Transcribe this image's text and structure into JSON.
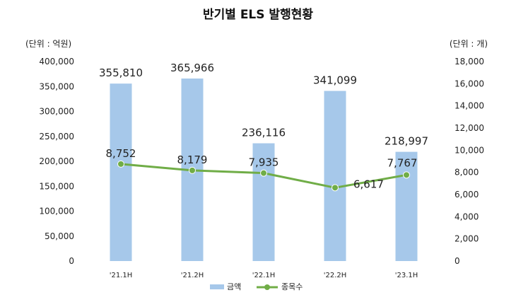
{
  "chart_data": {
    "type": "bar",
    "title": "반기별 ELS 발행현황",
    "left_unit_label": "(단위 : 억원)",
    "right_unit_label": "(단위 : 개)",
    "categories": [
      "'21.1H",
      "'21.2H",
      "'22.1H",
      "'22.2H",
      "'23.1H"
    ],
    "left_axis": {
      "min": 0,
      "max": 400000,
      "ticks": [
        "0",
        "50,000",
        "100,000",
        "150,000",
        "200,000",
        "250,000",
        "300,000",
        "350,000",
        "400,000"
      ]
    },
    "right_axis": {
      "min": 0,
      "max": 18000,
      "ticks": [
        "0",
        "2,000",
        "4,000",
        "6,000",
        "8,000",
        "10,000",
        "12,000",
        "14,000",
        "16,000",
        "18,000"
      ]
    },
    "grid": false,
    "legend_position": "bottom",
    "series": [
      {
        "name": "금액",
        "type": "bar",
        "axis": "left",
        "color": "#a6c8ea",
        "values": [
          355810,
          365966,
          236116,
          341099,
          218997
        ],
        "labels": [
          "355,810",
          "365,966",
          "236,116",
          "341,099",
          "218,997"
        ]
      },
      {
        "name": "종목수",
        "type": "line",
        "axis": "right",
        "color": "#70ad47",
        "values": [
          8752,
          8179,
          7935,
          6617,
          7767
        ],
        "labels": [
          "8,752",
          "8,179",
          "7,935",
          "6,617",
          "7,767"
        ]
      }
    ]
  }
}
